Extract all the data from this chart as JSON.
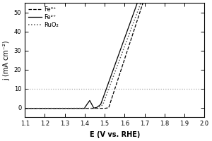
{
  "title": "",
  "xlabel": "E (V vs. RHE)",
  "ylabel": "j (mA cm⁻²)",
  "xlim": [
    1.1,
    2.0
  ],
  "ylim": [
    -5,
    55
  ],
  "yticks": [
    0,
    10,
    20,
    30,
    40,
    50
  ],
  "xticks": [
    1.1,
    1.2,
    1.3,
    1.4,
    1.5,
    1.6,
    1.7,
    1.8,
    1.9,
    2.0
  ],
  "hline_y": 10,
  "legend_labels": [
    "Fe³⁺",
    "Fe²⁺",
    "RuO₂"
  ],
  "bg_color": "#ffffff",
  "line_color": "#000000"
}
